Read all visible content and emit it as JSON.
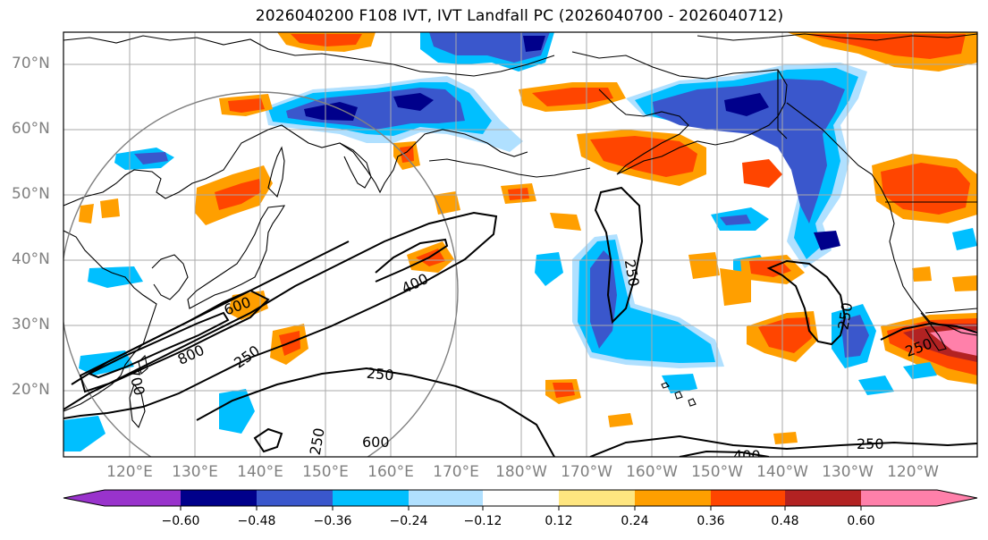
{
  "title": "2026040200 F108 IVT, IVT Landfall PC (2026040700 - 2026040712)",
  "chart_data": {
    "type": "heatmap",
    "title": "2026040200 F108 IVT, IVT Landfall PC (2026040700 - 2026040712)",
    "map_extent": {
      "lon_min": 110,
      "lon_max": 250,
      "lat_min": 10,
      "lat_max": 75
    },
    "lat_ticks": [
      "70°N",
      "60°N",
      "50°N",
      "40°N",
      "30°N",
      "20°N"
    ],
    "lon_ticks": [
      "120°E",
      "130°E",
      "140°E",
      "150°E",
      "160°E",
      "170°E",
      "180°W",
      "170°W",
      "160°W",
      "150°W",
      "140°W",
      "130°W",
      "120°W"
    ],
    "grid": true,
    "colorbar": {
      "orientation": "horizontal",
      "levels": [
        -0.72,
        -0.6,
        -0.48,
        -0.36,
        -0.24,
        -0.12,
        0.12,
        0.24,
        0.36,
        0.48,
        0.6,
        0.72
      ],
      "tick_labels": [
        "−0.60",
        "−0.48",
        "−0.36",
        "−0.24",
        "−0.12",
        "0.12",
        "0.24",
        "0.36",
        "0.48",
        "0.60"
      ],
      "colors": [
        "#9933cc",
        "#00008b",
        "#3a57cc",
        "#00bfff",
        "#b0e0ff",
        "#ffffff",
        "#ffe680",
        "#ff9f00",
        "#ff4500",
        "#b22222",
        "#ff80aa"
      ],
      "extend": "both"
    },
    "contour_labels": [
      "250",
      "400",
      "600",
      "800",
      "250",
      "400",
      "250",
      "250",
      "600",
      "250",
      "250",
      "400",
      "250",
      "700"
    ]
  },
  "contour_label_text": {
    "l250_a": "250",
    "l400_a": "400",
    "l600_a": "600",
    "l800_a": "800",
    "l250_b": "250",
    "l700_a": "700",
    "l250_c": "250",
    "l600_b": "600",
    "l250_d": "250",
    "l250_e": "250",
    "l250_f": "250",
    "l400_b": "400",
    "l250_g": "250"
  },
  "colors": {
    "grid": "#aaaaaa",
    "coast": "#000000",
    "ring": "#808080",
    "label": "#808080"
  }
}
